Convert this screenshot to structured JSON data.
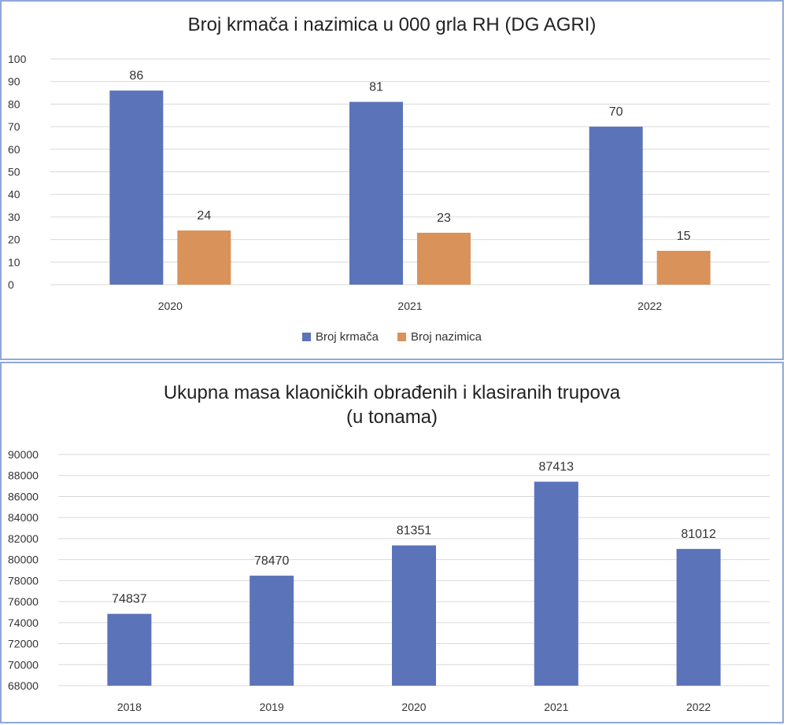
{
  "chart_data": [
    {
      "type": "bar",
      "title": "Broj krmača i nazimica u 000 grla RH (DG AGRI)",
      "categories": [
        "2020",
        "2021",
        "2022"
      ],
      "series": [
        {
          "name": "Broj krmača",
          "values": [
            86,
            81,
            70
          ],
          "color": "#5b73b9"
        },
        {
          "name": "Broj nazimica",
          "values": [
            24,
            23,
            15
          ],
          "color": "#d8925a"
        }
      ],
      "ylim": [
        0,
        100
      ],
      "yticks": [
        0,
        10,
        20,
        30,
        40,
        50,
        60,
        70,
        80,
        90,
        100
      ],
      "grid": true,
      "legend": "bottom"
    },
    {
      "type": "bar",
      "title_lines": [
        "Ukupna masa klaoničkih obrađenih i klasiranih trupova",
        "(u tonama)"
      ],
      "categories": [
        "2018",
        "2019",
        "2020",
        "2021",
        "2022"
      ],
      "values": [
        74837,
        78470,
        81351,
        87413,
        81012
      ],
      "color": "#5b73b9",
      "ylim": [
        68000,
        90000
      ],
      "yticks": [
        68000,
        70000,
        72000,
        74000,
        76000,
        78000,
        80000,
        82000,
        84000,
        86000,
        88000,
        90000
      ],
      "grid": true
    }
  ]
}
